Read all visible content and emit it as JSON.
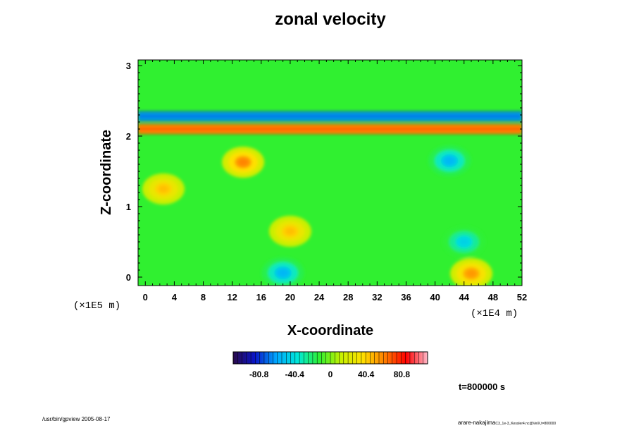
{
  "chart_data": {
    "type": "heatmap",
    "title": "zonal velocity",
    "xlabel": "X-coordinate",
    "ylabel": "Z-coordinate",
    "x_ticks": [
      "0",
      "4",
      "8",
      "12",
      "16",
      "20",
      "24",
      "28",
      "32",
      "36",
      "40",
      "44",
      "48",
      "52"
    ],
    "y_ticks": [
      "0",
      "1",
      "2",
      "3"
    ],
    "x_scale_note": "(×1E4 m)",
    "y_scale_note": "(×1E5 m)",
    "xlim": [
      -1,
      52
    ],
    "ylim": [
      -0.12,
      3.08
    ],
    "colorbar": {
      "range": [
        -110,
        110
      ],
      "tick_labels": [
        "-80.8",
        "-40.4",
        "0",
        "40.4",
        "80.8"
      ],
      "tick_values": [
        -80.8,
        -40.4,
        0,
        40.4,
        80.8
      ]
    },
    "features": [
      {
        "label": "jet core (positive)",
        "x": [
          -1,
          52
        ],
        "z": 2.1,
        "value": 80
      },
      {
        "label": "negative band",
        "x": [
          -1,
          52
        ],
        "z": 2.28,
        "value": -80
      },
      {
        "label": "negative blob",
        "x": 19,
        "z": 0.06,
        "value": -55
      },
      {
        "label": "negative blob",
        "x": 44,
        "z": 0.5,
        "value": -45
      },
      {
        "label": "positive blob",
        "x": 45,
        "z": 0.05,
        "value": 55
      },
      {
        "label": "positive blob",
        "x": 20,
        "z": 0.65,
        "value": 45
      },
      {
        "label": "positive blob",
        "x": 13.5,
        "z": 1.63,
        "value": 60
      },
      {
        "label": "negative blob",
        "x": 42,
        "z": 1.65,
        "value": -55
      },
      {
        "label": "positive blob",
        "x": 2.5,
        "z": 1.25,
        "value": 45
      }
    ]
  },
  "annotations": {
    "time": "t=800000 s",
    "footer_left": "/usr/bin/gpview 2005-08-17",
    "footer_right": "arare-nakajima",
    "footer_right_small": "C3_1e-3_Kessler4.nc@VelX,t=800000"
  },
  "colors": {
    "colormap": [
      "#2a0a4a",
      "#0a14c8",
      "#00a8ff",
      "#00e8d8",
      "#30f030",
      "#c8f000",
      "#ffe000",
      "#ff8000",
      "#ff0000",
      "#ffb8c8"
    ]
  }
}
